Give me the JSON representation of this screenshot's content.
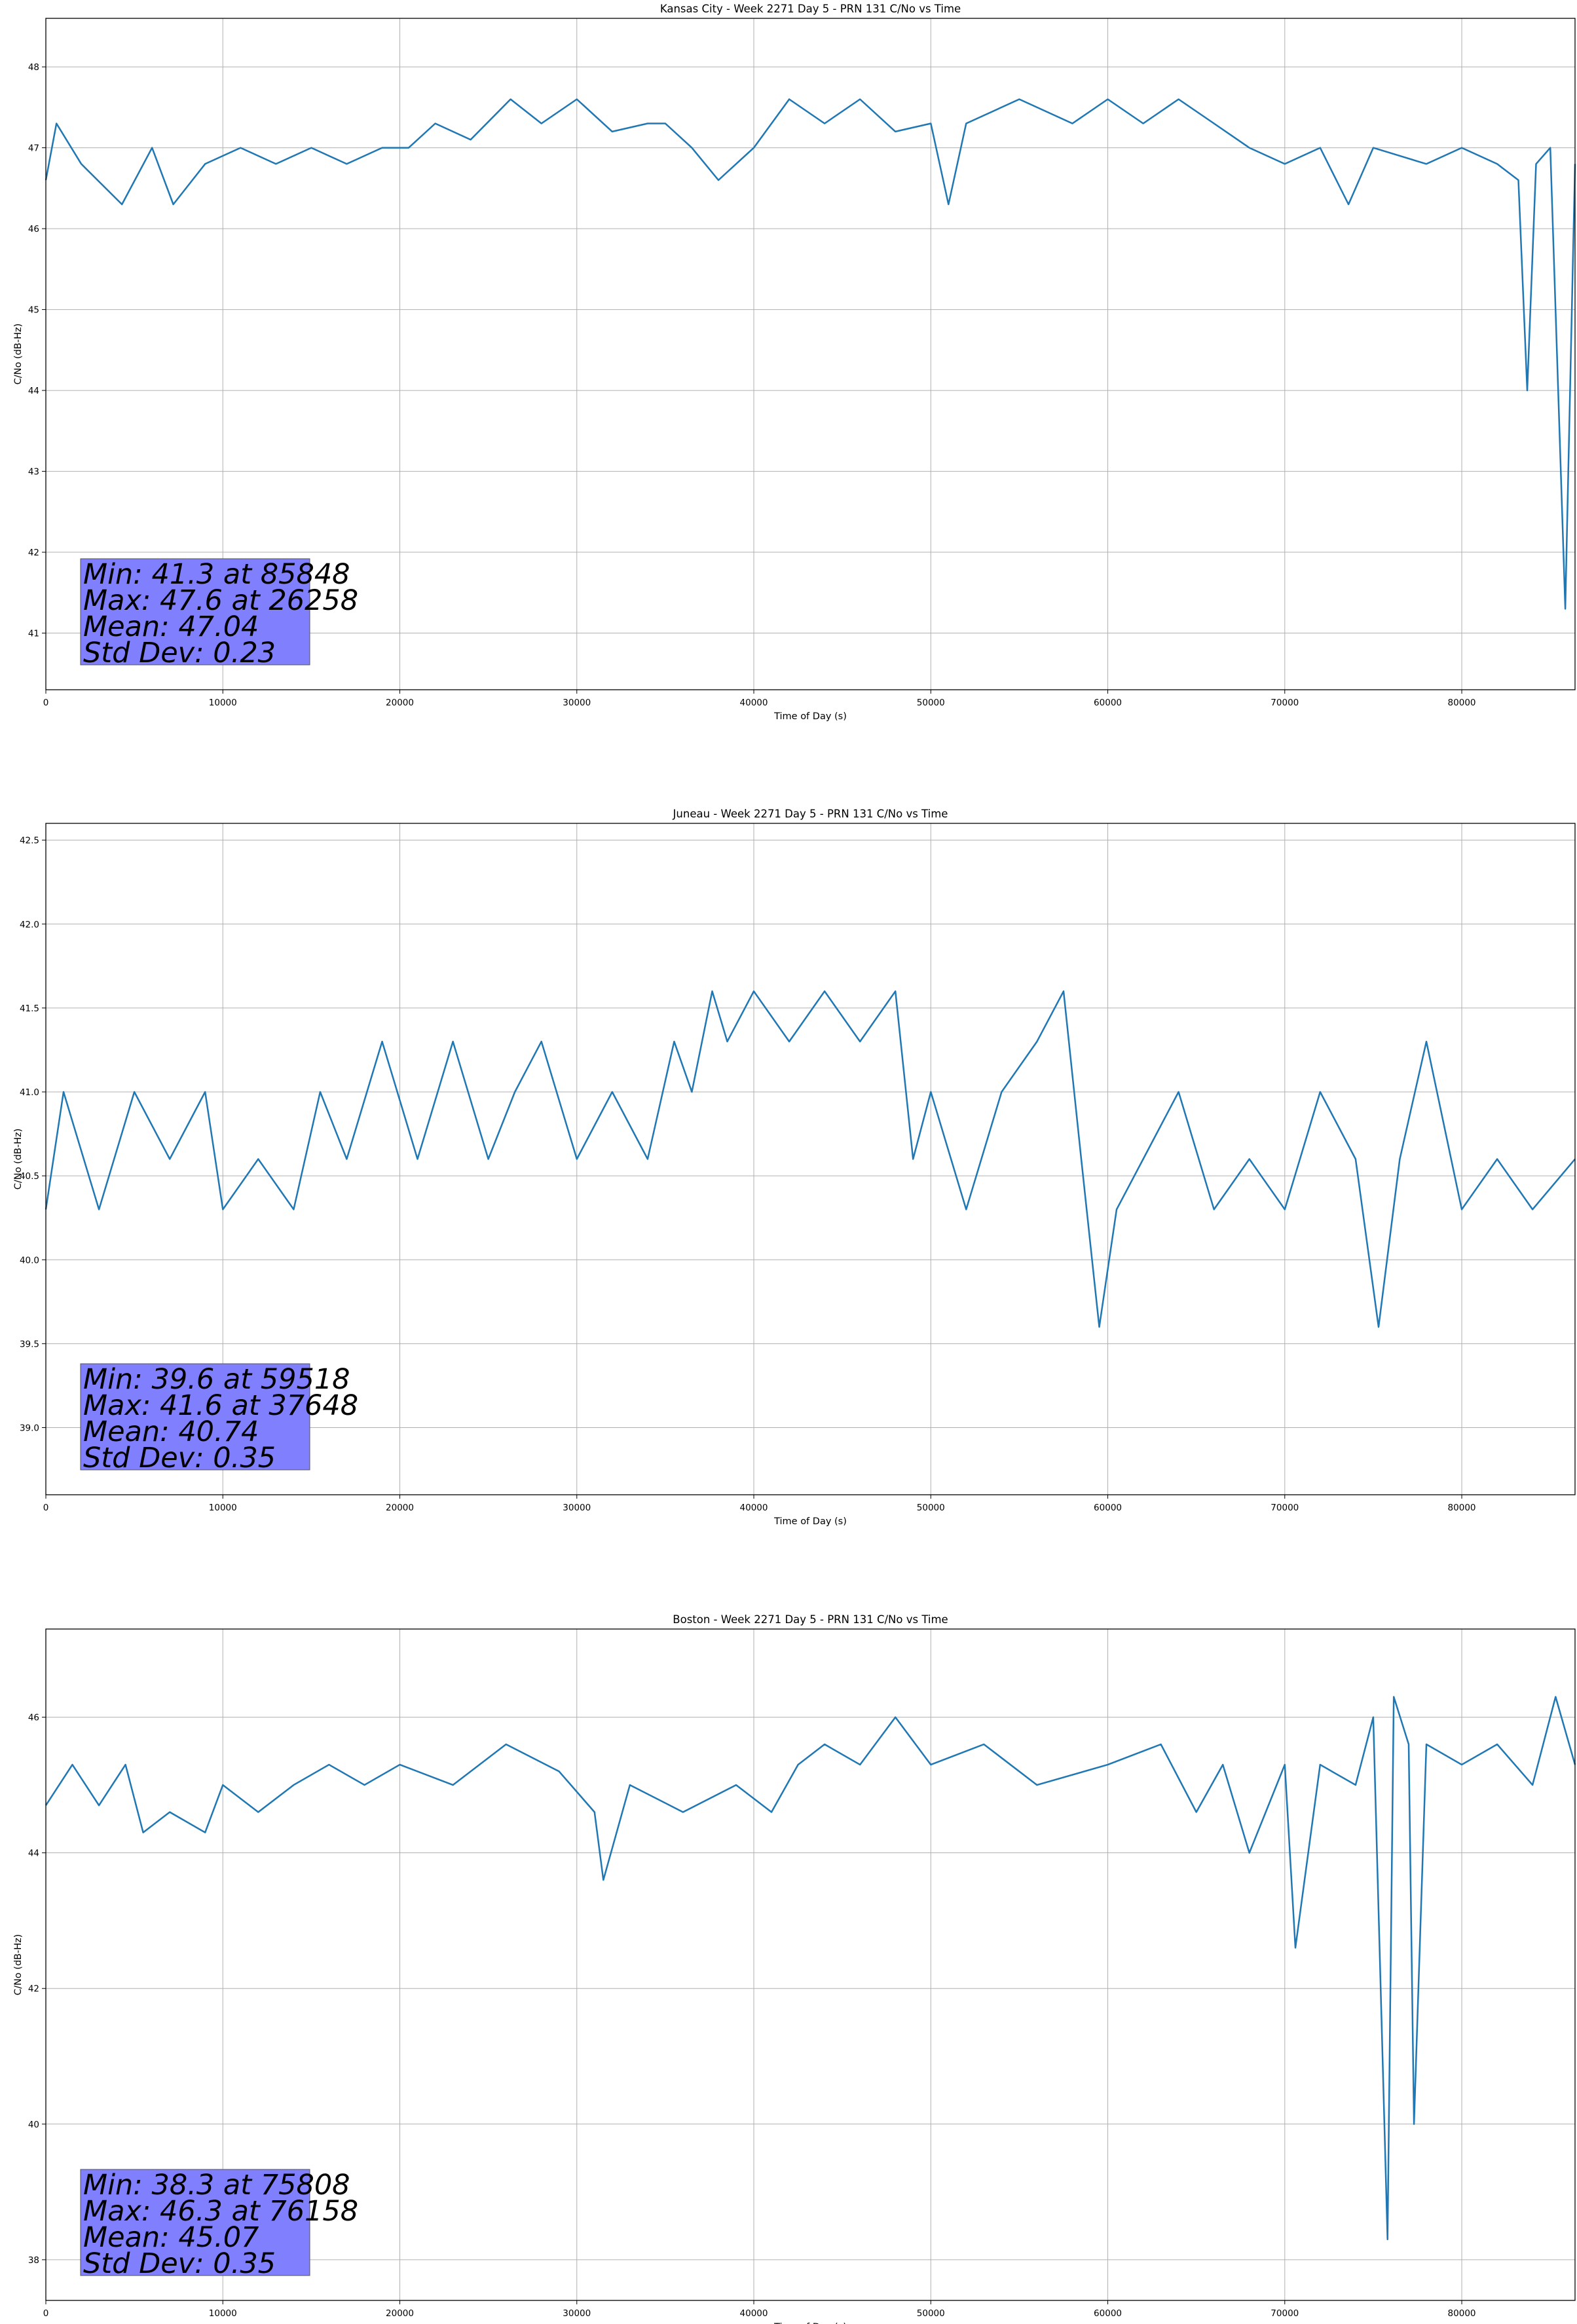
{
  "chart_data": [
    {
      "type": "line",
      "title": "Kansas City - Week 2271 Day 5 - PRN 131 C/No vs Time",
      "xlabel": "Time of Day (s)",
      "ylabel": "C/No (dB-Hz)",
      "xlim": [
        0,
        86400
      ],
      "ylim": [
        40.3,
        48.6
      ],
      "xticks": [
        0,
        10000,
        20000,
        30000,
        40000,
        50000,
        60000,
        70000,
        80000
      ],
      "yticks": [
        41,
        42,
        43,
        44,
        45,
        46,
        47,
        48
      ],
      "grid": true,
      "series": [
        {
          "color": "#1f77b4",
          "x": [
            0,
            600,
            2000,
            4300,
            6000,
            7200,
            9000,
            11000,
            13000,
            15000,
            17000,
            19000,
            20500,
            22000,
            24000,
            26258,
            28000,
            30000,
            32000,
            34000,
            35000,
            36500,
            38000,
            40000,
            42000,
            44000,
            46000,
            48000,
            50000,
            51000,
            52000,
            55000,
            58000,
            60000,
            62000,
            64000,
            66000,
            68000,
            70000,
            72000,
            73600,
            75000,
            78000,
            80000,
            82000,
            83200,
            83700,
            84200,
            85000,
            85848,
            86400
          ],
          "y": [
            46.6,
            47.3,
            46.8,
            46.3,
            47.0,
            46.3,
            46.8,
            47.0,
            46.8,
            47.0,
            46.8,
            47.0,
            47.0,
            47.3,
            47.1,
            47.6,
            47.3,
            47.6,
            47.2,
            47.3,
            47.3,
            47.0,
            46.6,
            47.0,
            47.6,
            47.3,
            47.6,
            47.2,
            47.3,
            46.3,
            47.3,
            47.6,
            47.3,
            47.6,
            47.3,
            47.6,
            47.3,
            47.0,
            46.8,
            47.0,
            46.3,
            47.0,
            46.8,
            47.0,
            46.8,
            46.6,
            44.0,
            46.8,
            47.0,
            41.3,
            46.8
          ]
        }
      ],
      "annotation": [
        "Min: 41.3 at 85848",
        "Max: 47.6 at 26258",
        "Mean: 47.04",
        "Std Dev: 0.23"
      ]
    },
    {
      "type": "line",
      "title": "Juneau - Week 2271 Day 5 - PRN 131 C/No vs Time",
      "xlabel": "Time of Day (s)",
      "ylabel": "C/No (dB-Hz)",
      "xlim": [
        0,
        86400
      ],
      "ylim": [
        38.6,
        42.6
      ],
      "xticks": [
        0,
        10000,
        20000,
        30000,
        40000,
        50000,
        60000,
        70000,
        80000
      ],
      "yticks": [
        39.0,
        39.5,
        40.0,
        40.5,
        41.0,
        41.5,
        42.0,
        42.5
      ],
      "yticklabels": [
        "39.0",
        "39.5",
        "40.0",
        "40.5",
        "41.0",
        "41.5",
        "42.0",
        "42.5"
      ],
      "grid": true,
      "series": [
        {
          "color": "#1f77b4",
          "x": [
            0,
            1000,
            3000,
            5000,
            7000,
            9000,
            10000,
            12000,
            14000,
            15500,
            17000,
            19000,
            21000,
            23000,
            25000,
            26500,
            28000,
            30000,
            32000,
            34000,
            35500,
            36500,
            37648,
            38500,
            40000,
            42000,
            44000,
            46000,
            48000,
            49000,
            50000,
            52000,
            54000,
            56000,
            57500,
            58500,
            59518,
            60500,
            62000,
            64000,
            66000,
            68000,
            70000,
            72000,
            74000,
            75300,
            76500,
            78000,
            80000,
            82000,
            84000,
            86400
          ],
          "y": [
            40.3,
            41.0,
            40.3,
            41.0,
            40.6,
            41.0,
            40.3,
            40.6,
            40.3,
            41.0,
            40.6,
            41.3,
            40.6,
            41.3,
            40.6,
            41.0,
            41.3,
            40.6,
            41.0,
            40.6,
            41.3,
            41.0,
            41.6,
            41.3,
            41.6,
            41.3,
            41.6,
            41.3,
            41.6,
            40.6,
            41.0,
            40.3,
            41.0,
            41.3,
            41.6,
            40.6,
            39.6,
            40.3,
            40.6,
            41.0,
            40.3,
            40.6,
            40.3,
            41.0,
            40.6,
            39.6,
            40.6,
            41.3,
            40.3,
            40.6,
            40.3,
            40.6
          ]
        }
      ],
      "annotation": [
        "Min: 39.6 at 59518",
        "Max: 41.6 at 37648",
        "Mean: 40.74",
        "Std Dev: 0.35"
      ]
    },
    {
      "type": "line",
      "title": "Boston - Week 2271 Day 5 - PRN 131 C/No vs Time",
      "xlabel": "Time of Day (s)",
      "ylabel": "C/No (dB-Hz)",
      "xlim": [
        0,
        86400
      ],
      "ylim": [
        37.4,
        47.3
      ],
      "xticks": [
        0,
        10000,
        20000,
        30000,
        40000,
        50000,
        60000,
        70000,
        80000
      ],
      "yticks": [
        38,
        40,
        42,
        44,
        46
      ],
      "grid": true,
      "series": [
        {
          "color": "#1f77b4",
          "x": [
            0,
            1500,
            3000,
            4500,
            5500,
            7000,
            9000,
            10000,
            12000,
            14000,
            16000,
            18000,
            20000,
            23000,
            26000,
            29000,
            31000,
            31500,
            33000,
            36000,
            39000,
            41000,
            42500,
            44000,
            46000,
            48000,
            50000,
            53000,
            56000,
            60000,
            63000,
            65000,
            66500,
            68000,
            70000,
            70600,
            72000,
            74000,
            75000,
            75808,
            76158,
            77000,
            77300,
            78000,
            80000,
            82000,
            84000,
            85300,
            86400
          ],
          "y": [
            44.7,
            45.3,
            44.7,
            45.3,
            44.3,
            44.6,
            44.3,
            45.0,
            44.6,
            45.0,
            45.3,
            45.0,
            45.3,
            45.0,
            45.6,
            45.2,
            44.6,
            43.6,
            45.0,
            44.6,
            45.0,
            44.6,
            45.3,
            45.6,
            45.3,
            46.0,
            45.3,
            45.6,
            45.0,
            45.3,
            45.6,
            44.6,
            45.3,
            44.0,
            45.3,
            42.6,
            45.3,
            45.0,
            46.0,
            38.3,
            46.3,
            45.6,
            40.0,
            45.6,
            45.3,
            45.6,
            45.0,
            46.3,
            45.3
          ]
        }
      ],
      "annotation": [
        "Min: 38.3 at 75808",
        "Max: 46.3 at 76158",
        "Mean: 45.07",
        "Std Dev: 0.35"
      ]
    }
  ]
}
